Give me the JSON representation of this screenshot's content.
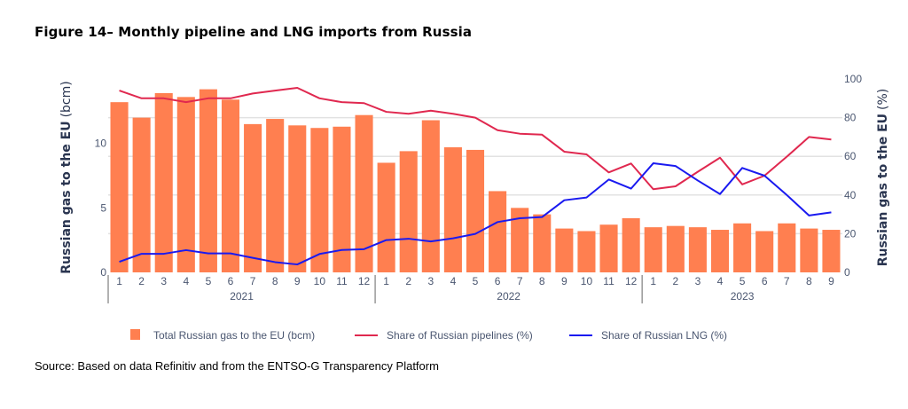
{
  "title": "Figure 14– Monthly pipeline and LNG imports from Russia",
  "source": "Source: Based on data Refinitiv and from the ENTSO-G Transparency Platform",
  "colors": {
    "bars": "#FF7F50",
    "pipelines": "#E0284F",
    "lng": "#1A1AF0"
  },
  "chart_data": {
    "type": "bar+line",
    "categories": [
      "1",
      "2",
      "3",
      "4",
      "5",
      "6",
      "7",
      "8",
      "9",
      "10",
      "11",
      "12",
      "1",
      "2",
      "3",
      "4",
      "5",
      "6",
      "7",
      "8",
      "9",
      "10",
      "11",
      "12",
      "1",
      "2",
      "3",
      "4",
      "5",
      "6",
      "7",
      "8",
      "9"
    ],
    "groups": [
      {
        "label": "2021",
        "count": 12
      },
      {
        "label": "2022",
        "count": 12
      },
      {
        "label": "2023",
        "count": 9
      }
    ],
    "ylabel_left": "Russian gas to the EU",
    "ylabel_left_unit": "(bcm)",
    "ylabel_right": "Russian gas to the EU",
    "ylabel_right_unit": "(%)",
    "ylim_left": [
      0,
      15
    ],
    "ylim_right": [
      0,
      100
    ],
    "yticks_left": [
      0,
      5,
      10
    ],
    "yticks_right": [
      0,
      20,
      40,
      60,
      80,
      100
    ],
    "grid": true,
    "legend_position": "bottom",
    "series": [
      {
        "name": "Total Russian gas to the EU (bcm)",
        "type": "bar",
        "axis": "left",
        "values": [
          13.2,
          12.0,
          13.9,
          13.6,
          14.2,
          13.4,
          11.5,
          11.9,
          11.4,
          11.2,
          11.3,
          12.2,
          8.5,
          9.4,
          11.8,
          9.7,
          9.5,
          6.3,
          5.0,
          4.5,
          3.4,
          3.2,
          3.7,
          4.2,
          3.5,
          3.6,
          3.5,
          3.3,
          3.8,
          3.2,
          3.8,
          3.4,
          3.3
        ]
      },
      {
        "name": "Share of Russian pipelines (%)",
        "type": "line",
        "axis": "right",
        "values": [
          94,
          90,
          90,
          88,
          90,
          90,
          92.5,
          94,
          95.4,
          90,
          88,
          87.5,
          83,
          82,
          83.6,
          82,
          80,
          73.5,
          71.7,
          71.2,
          62.4,
          61,
          51.7,
          56.3,
          43,
          44.5,
          52,
          59.3,
          45.5,
          50,
          59.8,
          70,
          68.7
        ]
      },
      {
        "name": "Share of Russian LNG (%)",
        "type": "line",
        "axis": "right",
        "values": [
          5.5,
          9.6,
          9.6,
          11.5,
          9.8,
          9.8,
          7.5,
          5.3,
          4.1,
          9.5,
          11.6,
          12,
          16.7,
          17.4,
          16,
          17.6,
          19.9,
          26,
          28,
          28.6,
          37.3,
          38.7,
          48,
          43.3,
          56.4,
          55,
          47.5,
          40.5,
          54,
          50,
          40,
          29.4,
          31
        ]
      }
    ]
  }
}
